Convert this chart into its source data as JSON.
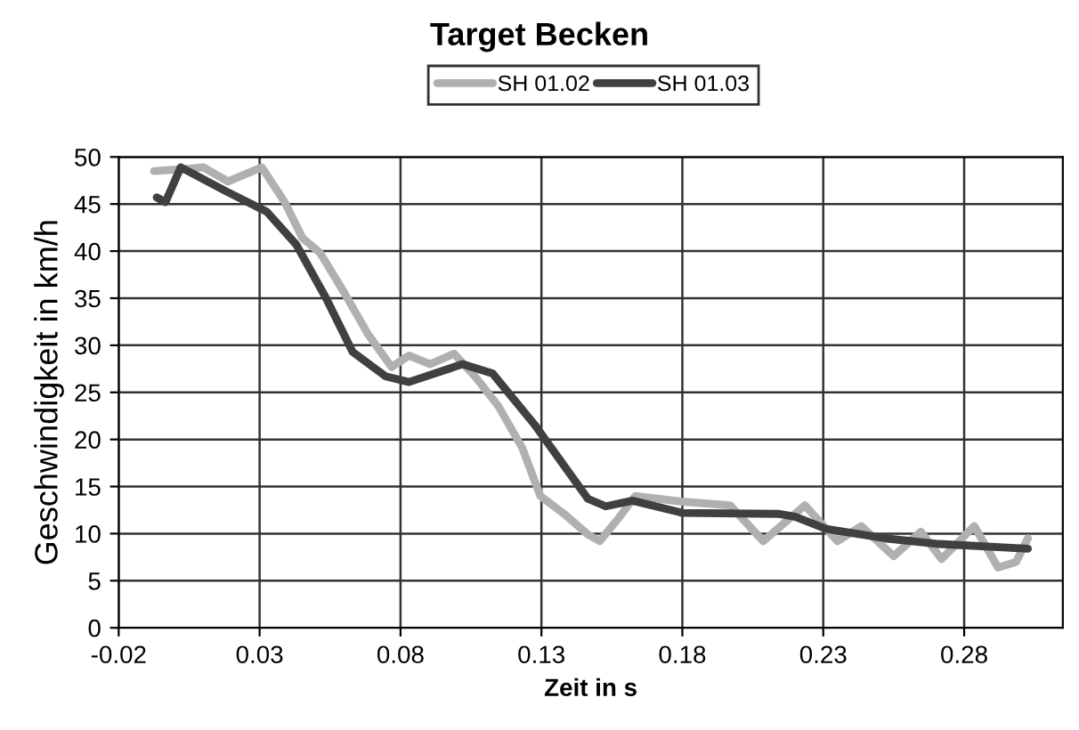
{
  "chart_data": {
    "type": "line",
    "title": "Target Becken",
    "xlabel": "Zeit in s",
    "ylabel": "Geschwindigkeit in km/h",
    "xlim": [
      -0.02,
      0.315
    ],
    "xticks": [
      -0.02,
      0.03,
      0.08,
      0.13,
      0.18,
      0.23,
      0.28
    ],
    "ylim": [
      0,
      50
    ],
    "yticks": [
      0,
      5,
      10,
      15,
      20,
      25,
      30,
      35,
      40,
      45,
      50
    ],
    "grid": true,
    "legend": "top",
    "marker": "none",
    "line_style": "solid",
    "series": [
      {
        "name": "SH 01.02",
        "color": "#b0b0b0",
        "x": [
          -0.0075,
          0.0028,
          0.01,
          0.0188,
          0.0308,
          0.0389,
          0.0452,
          0.0515,
          0.06,
          0.0684,
          0.0768,
          0.083,
          0.0905,
          0.099,
          0.1064,
          0.1148,
          0.1232,
          0.1296,
          0.138,
          0.1465,
          0.1507,
          0.157,
          0.1633,
          0.18,
          0.197,
          0.2087,
          0.2235,
          0.235,
          0.2435,
          0.255,
          0.2646,
          0.272,
          0.2836,
          0.292,
          0.2984,
          0.3026
        ],
        "values": [
          48.5,
          48.7,
          48.9,
          47.4,
          48.9,
          45.2,
          41.4,
          39.8,
          35.6,
          31.2,
          27.7,
          28.9,
          28,
          29.1,
          26.7,
          23.5,
          19.1,
          14,
          12.1,
          9.9,
          9.2,
          11.5,
          14,
          13.4,
          13,
          9.2,
          13,
          9.2,
          10.8,
          7.6,
          10.2,
          7.3,
          10.8,
          6.4,
          7,
          9.5
        ]
      },
      {
        "name": "SH 01.03",
        "color": "#404040",
        "x": [
          -0.0065,
          -0.0034,
          0.002,
          0.0178,
          0.0325,
          0.043,
          0.0536,
          0.063,
          0.0747,
          0.083,
          0.102,
          0.1127,
          0.1275,
          0.1465,
          0.1528,
          0.1623,
          0.18,
          0.214,
          0.22,
          0.231,
          0.252,
          0.271,
          0.3026
        ],
        "values": [
          45.7,
          45.2,
          48.9,
          46.4,
          44.2,
          40.7,
          35,
          29.3,
          26.7,
          26.1,
          28,
          27,
          21.6,
          13.7,
          12.9,
          13.5,
          12.2,
          12.1,
          11.8,
          10.5,
          9.5,
          8.9,
          8.4
        ]
      }
    ]
  }
}
